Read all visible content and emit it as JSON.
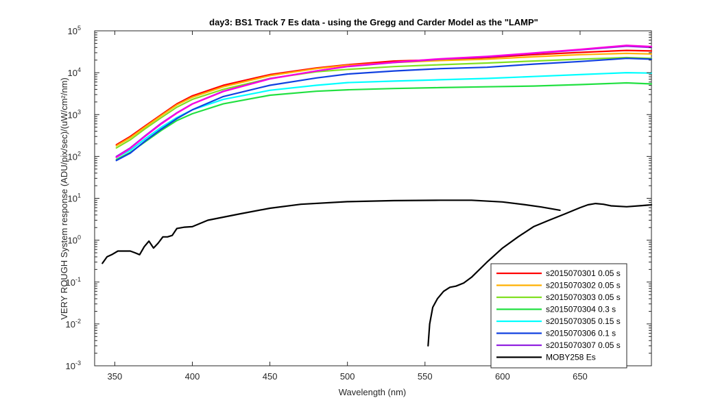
{
  "chart_data": {
    "type": "line",
    "title": "day3: BS1  Track 7 Es data - using the Gregg and Carder Model as the \"LAMP\"",
    "xlabel": "Wavelength (nm)",
    "ylabel": "VERY ROUGH System response (ADU/pix/sec)/(uW/cm²/nm)",
    "xlim": [
      337,
      696
    ],
    "ylim": [
      0.001,
      100000
    ],
    "yscale": "log",
    "xticks": [
      350,
      400,
      450,
      500,
      550,
      600,
      650
    ],
    "yticks": [
      {
        "base": "10",
        "exp": "-3",
        "value": 0.001
      },
      {
        "base": "10",
        "exp": "-2",
        "value": 0.01
      },
      {
        "base": "10",
        "exp": "-1",
        "value": 0.1
      },
      {
        "base": "10",
        "exp": "0",
        "value": 1
      },
      {
        "base": "10",
        "exp": "1",
        "value": 10
      },
      {
        "base": "10",
        "exp": "2",
        "value": 100
      },
      {
        "base": "10",
        "exp": "3",
        "value": 1000
      },
      {
        "base": "10",
        "exp": "4",
        "value": 10000
      },
      {
        "base": "10",
        "exp": "5",
        "value": 100000
      }
    ],
    "grid": false,
    "legend_position": "bottom-right",
    "series": [
      {
        "name": "s2015070301 0.05 s",
        "color": "#ff0000",
        "x": [
          351,
          360,
          370,
          380,
          390,
          400,
          420,
          450,
          480,
          500,
          530,
          560,
          590,
          620,
          650,
          680,
          696
        ],
        "y": [
          190,
          300,
          550,
          1000,
          1800,
          2800,
          5000,
          9000,
          13000,
          15500,
          19000,
          20500,
          23000,
          27000,
          30500,
          34000,
          33000
        ]
      },
      {
        "name": "s2015070302 0.05 s",
        "color": "#ffb000",
        "x": [
          351,
          360,
          370,
          380,
          390,
          400,
          420,
          450,
          480,
          500,
          530,
          560,
          590,
          620,
          650,
          680,
          696
        ],
        "y": [
          180,
          280,
          520,
          950,
          1700,
          2600,
          4600,
          8500,
          12500,
          15000,
          17500,
          19500,
          21000,
          24000,
          27000,
          29000,
          28000
        ]
      },
      {
        "name": "s2015070303 0.05 s",
        "color": "#80e020",
        "x": [
          351,
          360,
          370,
          380,
          390,
          400,
          420,
          450,
          480,
          500,
          530,
          560,
          590,
          620,
          650,
          680,
          696
        ],
        "y": [
          160,
          250,
          470,
          850,
          1500,
          2300,
          4000,
          7300,
          10500,
          12000,
          14000,
          15500,
          17000,
          19000,
          21000,
          23000,
          22000
        ]
      },
      {
        "name": "s2015070304 0.3 s",
        "color": "#20e040",
        "x": [
          351,
          360,
          370,
          380,
          390,
          400,
          420,
          450,
          480,
          500,
          530,
          560,
          590,
          620,
          650,
          680,
          696
        ],
        "y": [
          85,
          125,
          230,
          420,
          720,
          1050,
          1800,
          2900,
          3600,
          3900,
          4200,
          4400,
          4600,
          4800,
          5200,
          5700,
          5400
        ]
      },
      {
        "name": "s2015070305 0.15 s",
        "color": "#00ffff",
        "x": [
          351,
          360,
          370,
          380,
          390,
          400,
          420,
          450,
          480,
          500,
          530,
          560,
          590,
          620,
          650,
          680,
          696
        ],
        "y": [
          95,
          140,
          270,
          500,
          850,
          1300,
          2300,
          3800,
          5000,
          5800,
          6300,
          6800,
          7300,
          8100,
          9000,
          10000,
          9800
        ]
      },
      {
        "name": "s2015070306 0.1 s",
        "color": "#1040e0",
        "x": [
          351,
          360,
          370,
          380,
          390,
          400,
          420,
          450,
          480,
          500,
          530,
          560,
          590,
          620,
          650,
          680,
          696
        ],
        "y": [
          80,
          120,
          240,
          450,
          800,
          1300,
          2700,
          5000,
          7500,
          9300,
          11000,
          12500,
          13500,
          16000,
          18500,
          22000,
          21000
        ]
      },
      {
        "name": "s2015070307 0.05 s",
        "color": "#9020e0",
        "x": [
          351,
          360,
          370,
          380,
          390,
          400,
          420,
          450,
          480,
          500,
          530,
          560,
          590,
          620,
          650,
          680,
          696
        ],
        "y": [
          100,
          160,
          320,
          620,
          1100,
          1800,
          3600,
          7200,
          11000,
          14000,
          17500,
          21000,
          24000,
          29000,
          35000,
          43000,
          40000
        ]
      },
      {
        "name": "",
        "color": "#ff00e0",
        "x": [
          351,
          360,
          370,
          380,
          390,
          400,
          420,
          450,
          480,
          500,
          530,
          560,
          590,
          620,
          650,
          680,
          696
        ],
        "y": [
          95,
          155,
          310,
          600,
          1080,
          1780,
          3550,
          7100,
          11000,
          14200,
          17800,
          21500,
          24500,
          29500,
          36000,
          45000,
          42000
        ]
      },
      {
        "name": "MOBY258 Es",
        "color": "#000000",
        "segments": [
          {
            "x": [
              342,
              345,
              348,
              352,
              356,
              360,
              363,
              366,
              369,
              372,
              375,
              378,
              381,
              384,
              387,
              390,
              395,
              400,
              410,
              430,
              450,
              470,
              500,
              530,
              560,
              580,
              600,
              615,
              625,
              637
            ],
            "y": [
              0.28,
              0.4,
              0.45,
              0.55,
              0.55,
              0.55,
              0.5,
              0.45,
              0.7,
              0.95,
              0.65,
              0.85,
              1.2,
              1.2,
              1.3,
              1.9,
              2.05,
              2.1,
              3.0,
              4.2,
              5.8,
              7.2,
              8.3,
              8.8,
              9.0,
              9.0,
              8.2,
              7.0,
              6.2,
              5.2
            ]
          },
          {
            "x": [
              552,
              553,
              555,
              558,
              562,
              566,
              570,
              575,
              580,
              590,
              600,
              610,
              620,
              630,
              640,
              650,
              655,
              660,
              665,
              670,
              680,
              690,
              696
            ],
            "y": [
              0.003,
              0.01,
              0.025,
              0.04,
              0.06,
              0.075,
              0.08,
              0.095,
              0.13,
              0.3,
              0.65,
              1.2,
              2.1,
              3.0,
              4.2,
              6.0,
              7.0,
              7.5,
              7.2,
              6.6,
              6.3,
              6.7,
              7.0
            ]
          }
        ]
      }
    ]
  }
}
